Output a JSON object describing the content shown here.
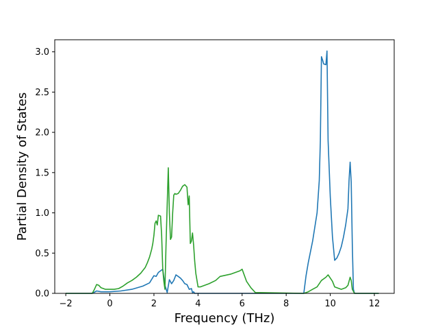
{
  "chart_data": {
    "type": "line",
    "title": "",
    "xlabel": "Frequency (THz)",
    "ylabel": "Partial Density of States",
    "xlim": [
      -2.5,
      12.9
    ],
    "ylim": [
      0,
      3.15
    ],
    "xticks": [
      -2,
      0,
      2,
      4,
      6,
      8,
      10,
      12
    ],
    "yticks": [
      0.0,
      0.5,
      1.0,
      1.5,
      2.0,
      2.5,
      3.0
    ],
    "xtick_labels": [
      "−2",
      "0",
      "2",
      "4",
      "6",
      "8",
      "10",
      "12"
    ],
    "ytick_labels": [
      "0.0",
      "0.5",
      "1.0",
      "1.5",
      "2.0",
      "2.5",
      "3.0"
    ],
    "grid": false,
    "legend": "none",
    "series": [
      {
        "color": "#1f77b4",
        "x": [
          -2.0,
          -0.8,
          -0.6,
          -0.4,
          0.0,
          0.5,
          1.0,
          1.5,
          1.8,
          2.0,
          2.1,
          2.2,
          2.3,
          2.4,
          2.45,
          2.5,
          2.6,
          2.7,
          2.8,
          2.9,
          3.0,
          3.1,
          3.2,
          3.3,
          3.4,
          3.5,
          3.6,
          3.7,
          3.75,
          3.8,
          3.85,
          3.9,
          4.0,
          5.0,
          6.0,
          7.0,
          8.0,
          8.8,
          8.9,
          9.0,
          9.2,
          9.4,
          9.5,
          9.55,
          9.6,
          9.65,
          9.7,
          9.8,
          9.85,
          9.9,
          10.0,
          10.1,
          10.2,
          10.3,
          10.4,
          10.5,
          10.6,
          10.7,
          10.8,
          10.85,
          10.9,
          10.95,
          11.0,
          11.05,
          11.1,
          12.2
        ],
        "y": [
          0.0,
          0.0,
          0.03,
          0.02,
          0.02,
          0.03,
          0.05,
          0.09,
          0.13,
          0.22,
          0.21,
          0.26,
          0.28,
          0.3,
          0.2,
          0.1,
          0.01,
          0.17,
          0.12,
          0.16,
          0.23,
          0.21,
          0.19,
          0.16,
          0.12,
          0.11,
          0.05,
          0.06,
          0.01,
          0.02,
          0.0,
          0.0,
          0.0,
          0.0,
          0.0,
          0.0,
          0.0,
          0.0,
          0.22,
          0.38,
          0.65,
          1.0,
          1.4,
          1.9,
          2.94,
          2.9,
          2.85,
          2.84,
          3.01,
          1.9,
          1.2,
          0.7,
          0.41,
          0.44,
          0.5,
          0.58,
          0.7,
          0.85,
          1.05,
          1.4,
          1.63,
          1.38,
          0.6,
          0.05,
          0.0,
          0.0
        ]
      },
      {
        "color": "#2ca02c",
        "x": [
          -2.0,
          -0.8,
          -0.7,
          -0.6,
          -0.5,
          -0.4,
          -0.2,
          0.0,
          0.2,
          0.4,
          0.6,
          0.8,
          1.0,
          1.2,
          1.4,
          1.6,
          1.7,
          1.8,
          1.9,
          1.95,
          2.0,
          2.05,
          2.1,
          2.15,
          2.2,
          2.3,
          2.35,
          2.4,
          2.45,
          2.5,
          2.55,
          2.6,
          2.65,
          2.7,
          2.75,
          2.8,
          2.85,
          2.9,
          2.95,
          3.0,
          3.1,
          3.2,
          3.3,
          3.4,
          3.5,
          3.55,
          3.6,
          3.65,
          3.7,
          3.75,
          3.8,
          3.85,
          3.9,
          4.0,
          4.1,
          4.5,
          4.8,
          5.0,
          5.5,
          5.9,
          6.0,
          6.2,
          6.4,
          6.6,
          8.8,
          9.0,
          9.2,
          9.4,
          9.6,
          9.8,
          9.9,
          10.0,
          10.1,
          10.2,
          10.5,
          10.7,
          10.8,
          10.85,
          10.9,
          10.95,
          11.0,
          11.1,
          12.2
        ],
        "y": [
          0.0,
          0.0,
          0.05,
          0.11,
          0.1,
          0.07,
          0.05,
          0.05,
          0.05,
          0.06,
          0.09,
          0.13,
          0.16,
          0.2,
          0.25,
          0.32,
          0.38,
          0.45,
          0.55,
          0.62,
          0.72,
          0.87,
          0.9,
          0.85,
          0.97,
          0.96,
          0.72,
          0.3,
          0.15,
          0.05,
          0.6,
          1.1,
          1.56,
          1.0,
          0.67,
          0.7,
          1.0,
          1.22,
          1.24,
          1.23,
          1.24,
          1.28,
          1.33,
          1.35,
          1.32,
          1.1,
          1.21,
          0.62,
          0.65,
          0.75,
          0.6,
          0.4,
          0.25,
          0.08,
          0.08,
          0.12,
          0.16,
          0.21,
          0.24,
          0.28,
          0.3,
          0.15,
          0.07,
          0.01,
          0.0,
          0.02,
          0.05,
          0.08,
          0.16,
          0.2,
          0.23,
          0.19,
          0.15,
          0.08,
          0.05,
          0.07,
          0.1,
          0.15,
          0.2,
          0.16,
          0.05,
          0.0,
          0.0
        ]
      }
    ]
  }
}
